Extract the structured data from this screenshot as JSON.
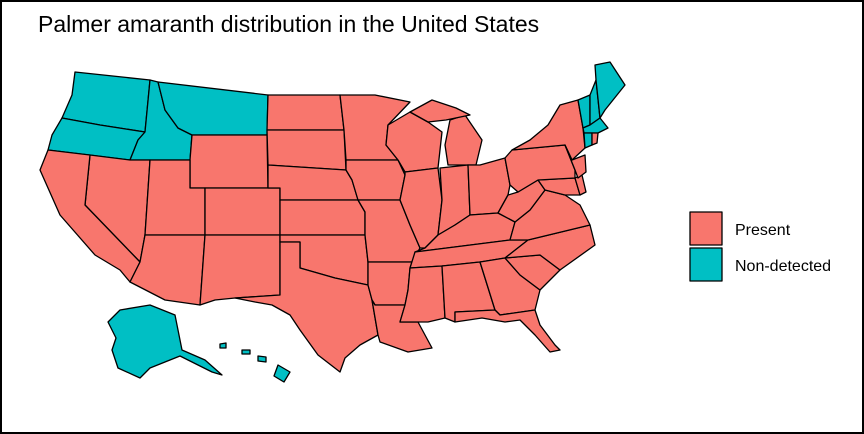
{
  "title": "Palmer amaranth distribution in the United States",
  "legend": {
    "items": [
      {
        "label": "Present",
        "color": "#F8766D"
      },
      {
        "label": "Non-detected",
        "color": "#00BFC4"
      }
    ]
  }
}
